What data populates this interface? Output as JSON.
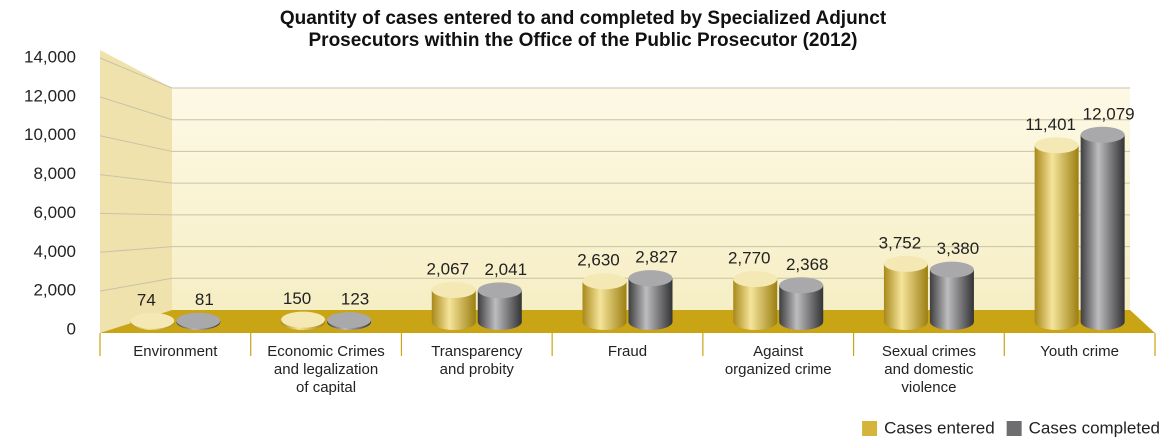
{
  "chart_data": {
    "type": "bar",
    "title": "Quantity of cases entered to and completed by Specialized Adjunct\nProsecutors within the Office of the Public Prosecutor (2012)",
    "categories": [
      "Environment",
      "Economic Crimes\nand legalization\nof capital",
      "Transparency\nand probity",
      "Fraud",
      "Against\norganized crime",
      "Sexual crimes\nand domestic\nviolence",
      "Youth crime"
    ],
    "series": [
      {
        "name": "Cases entered",
        "color": "#d4b43a",
        "values": [
          74,
          150,
          2067,
          2630,
          2770,
          3752,
          11401
        ],
        "value_labels": [
          "74",
          "150",
          "2,067",
          "2,630",
          "2,770",
          "3,752",
          "11,401"
        ]
      },
      {
        "name": "Cases completed",
        "color": "#6e6e70",
        "values": [
          81,
          123,
          2041,
          2827,
          2368,
          3380,
          12079
        ],
        "value_labels": [
          "81",
          "123",
          "2,041",
          "2,827",
          "2,368",
          "3,380",
          "12,079"
        ]
      }
    ],
    "ylim": [
      0,
      14000
    ],
    "yticks": [
      0,
      {
        "value": 2000,
        "label": "2,000"
      },
      {
        "value": 4000,
        "label": "4,000"
      },
      {
        "value": 6000,
        "label": "6,000"
      },
      {
        "value": 8000,
        "label": "8,000"
      },
      {
        "value": 10000,
        "label": "10,000"
      },
      {
        "value": 12000,
        "label": "12,000"
      },
      {
        "value": 14000,
        "label": "14,000"
      }
    ],
    "grid": true,
    "legend": "bottom-right"
  }
}
